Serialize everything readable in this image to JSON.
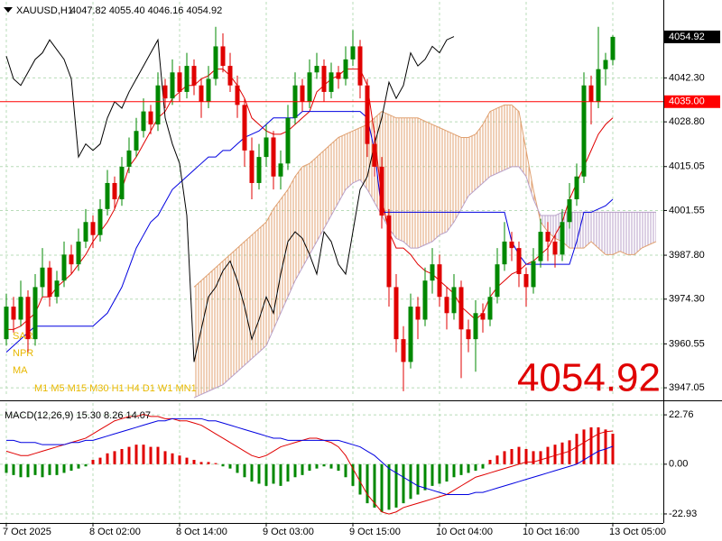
{
  "chart_data": {
    "type": "candlestick",
    "title": "XAUUSD,H1",
    "quote": "4047.82 4055.40 4046.16 4054.92",
    "legend_labels": [
      "SAR",
      "NPR",
      "MA"
    ],
    "timeframes": "M1 M5 M15 M30 H1 H4 D1 W1 MN1",
    "legend_color": "#e8b800",
    "grid": true,
    "up_color": "#008800",
    "down_color": "#e00000",
    "xlim": [
      -0.875,
      91
    ],
    "xticks": [
      {
        "value": 0,
        "label": "7 Oct 2025"
      },
      {
        "value": 12,
        "label": "8 Oct 02:00"
      },
      {
        "value": 24,
        "label": "8 Oct 14:00"
      },
      {
        "value": 36,
        "label": "9 Oct 03:00"
      },
      {
        "value": 48,
        "label": "9 Oct 15:00"
      },
      {
        "value": 60,
        "label": "10 Oct 04:00"
      },
      {
        "value": 72,
        "label": "10 Oct 16:00"
      },
      {
        "value": 84,
        "label": "13 Oct 05:00"
      }
    ],
    "ylim": [
      3944.3,
      4065.7
    ],
    "yticks": [
      {
        "value": 4042.3,
        "label": "4042.30"
      },
      {
        "value": 4028.8,
        "label": "4028.80"
      },
      4015.05,
      4001.55,
      {
        "value": 3987.8,
        "label": "3987.80"
      },
      {
        "value": 3974.3,
        "label": "3974.30"
      },
      3960.55,
      3947.05
    ],
    "hline": {
      "value": 4035,
      "label": "4035.00",
      "color": "#ff0000"
    },
    "ohlc": [
      [
        3962,
        3976,
        3960,
        3972
      ],
      [
        3972,
        3975,
        3964,
        3968
      ],
      [
        3968,
        3980,
        3966,
        3975
      ],
      [
        3975,
        3977,
        3958,
        3962
      ],
      [
        3962,
        3982,
        3960,
        3978
      ],
      [
        3978,
        3990,
        3975,
        3984
      ],
      [
        3984,
        3986,
        3972,
        3975
      ],
      [
        3975,
        3983,
        3973,
        3980
      ],
      [
        3980,
        3992,
        3978,
        3988
      ],
      [
        3988,
        3991,
        3982,
        3985
      ],
      [
        3985,
        3996,
        3983,
        3992
      ],
      [
        3992,
        4002,
        3990,
        3998
      ],
      [
        3998,
        4000,
        3990,
        3994
      ],
      [
        3994,
        4005,
        3992,
        4002
      ],
      [
        4002,
        4014,
        4000,
        4010
      ],
      [
        4010,
        4012,
        4002,
        4005
      ],
      [
        4005,
        4018,
        4003,
        4015
      ],
      [
        4015,
        4024,
        4013,
        4020
      ],
      [
        4020,
        4030,
        4018,
        4026
      ],
      [
        4026,
        4036,
        4024,
        4032
      ],
      [
        4032,
        4034,
        4025,
        4028
      ],
      [
        4028,
        4044,
        4026,
        4040
      ],
      [
        4040,
        4042,
        4033,
        4036
      ],
      [
        4036,
        4048,
        4034,
        4044
      ],
      [
        4044,
        4046,
        4035,
        4038
      ],
      [
        4038,
        4050,
        4036,
        4046
      ],
      [
        4046,
        4048,
        4037,
        4040
      ],
      [
        4040,
        4042,
        4030,
        4035
      ],
      [
        4035,
        4046,
        4033,
        4042
      ],
      [
        4042,
        4058,
        4040,
        4052
      ],
      [
        4052,
        4056,
        4044,
        4046
      ],
      [
        4046,
        4050,
        4038,
        4040
      ],
      [
        4040,
        4043,
        4030,
        4034
      ],
      [
        4034,
        4036,
        4015,
        4020
      ],
      [
        4020,
        4024,
        4005,
        4010
      ],
      [
        4010,
        4022,
        4008,
        4018
      ],
      [
        4018,
        4028,
        4015,
        4024
      ],
      [
        4024,
        4026,
        4008,
        4012
      ],
      [
        4012,
        4020,
        4008,
        4016
      ],
      [
        4016,
        4034,
        4014,
        4030
      ],
      [
        4030,
        4044,
        4028,
        4040
      ],
      [
        4040,
        4042,
        4032,
        4035
      ],
      [
        4035,
        4048,
        4033,
        4044
      ],
      [
        4044,
        4050,
        4042,
        4046
      ],
      [
        4046,
        4048,
        4035,
        4038
      ],
      [
        4038,
        4047,
        4036,
        4044
      ],
      [
        4044,
        4046,
        4039,
        4042
      ],
      [
        4042,
        4052,
        4040,
        4048
      ],
      [
        4048,
        4057,
        4046,
        4052
      ],
      [
        4052,
        4054,
        4036,
        4040
      ],
      [
        4040,
        4042,
        4018,
        4022
      ],
      [
        4022,
        4026,
        4012,
        4015
      ],
      [
        4015,
        4018,
        3996,
        4000
      ],
      [
        4000,
        4002,
        3972,
        3978
      ],
      [
        3978,
        3982,
        3958,
        3962
      ],
      [
        3962,
        3966,
        3946,
        3955
      ],
      [
        3955,
        3976,
        3953,
        3972
      ],
      [
        3972,
        3975,
        3962,
        3968
      ],
      [
        3968,
        3984,
        3966,
        3980
      ],
      [
        3980,
        3990,
        3976,
        3985
      ],
      [
        3985,
        3988,
        3972,
        3975
      ],
      [
        3975,
        3978,
        3965,
        3970
      ],
      [
        3970,
        3982,
        3968,
        3978
      ],
      [
        3978,
        3980,
        3950,
        3965
      ],
      [
        3965,
        3968,
        3958,
        3962
      ],
      [
        3962,
        3974,
        3952,
        3970
      ],
      [
        3970,
        3973,
        3964,
        3968
      ],
      [
        3968,
        3978,
        3966,
        3975
      ],
      [
        3975,
        3990,
        3973,
        3985
      ],
      [
        3985,
        3998,
        3983,
        3992
      ],
      [
        3992,
        3995,
        3986,
        3990
      ],
      [
        3990,
        3992,
        3978,
        3982
      ],
      [
        3982,
        3984,
        3972,
        3978
      ],
      [
        3978,
        3990,
        3976,
        3986
      ],
      [
        3986,
        3999,
        3984,
        3995
      ],
      [
        3995,
        3998,
        3986,
        3992
      ],
      [
        3992,
        3994,
        3984,
        3988
      ],
      [
        3988,
        4002,
        3986,
        3998
      ],
      [
        3998,
        4010,
        3996,
        4005
      ],
      [
        4005,
        4016,
        4003,
        4012
      ],
      [
        4012,
        4044,
        4010,
        4040
      ],
      [
        4040,
        4043,
        4028,
        4035
      ],
      [
        4035,
        4058,
        4033,
        4045
      ],
      [
        4045,
        4050,
        4040,
        4047.82
      ],
      [
        4047.82,
        4055.4,
        4046.16,
        4054.92
      ]
    ],
    "lines": [
      {
        "color": "#e00000",
        "values": [
          3965,
          3965,
          3966,
          3968,
          3970,
          3975,
          3975,
          3978,
          3980,
          3982,
          3985,
          3988,
          3992,
          3995,
          3998,
          4002,
          4008,
          4015,
          4018,
          4022,
          4026,
          4030,
          4032,
          4036,
          4038,
          4040,
          4040,
          4042,
          4043,
          4045,
          4045,
          4043,
          4040,
          4036,
          4030,
          4028,
          4026,
          4025,
          4025,
          4026,
          4028,
          4030,
          4032,
          4038,
          4040,
          4042,
          4043,
          4045,
          4045,
          4045,
          4040,
          4025,
          4005,
          3995,
          3990,
          3990,
          3988,
          3985,
          3983,
          3982,
          3980,
          3978,
          3976,
          3972,
          3970,
          3968,
          3970,
          3975,
          3978,
          3980,
          3982,
          3983,
          3985,
          3986,
          3988,
          3990,
          3994,
          3998,
          4005,
          4010,
          4015,
          4020,
          4025,
          4028,
          4030
        ]
      },
      {
        "color": "#0000e0",
        "values": [
          3958,
          3960,
          3962,
          3964,
          3966,
          3966,
          3966,
          3966,
          3966,
          3966,
          3966,
          3966,
          3966,
          3968,
          3970,
          3974,
          3978,
          3984,
          3990,
          3994,
          3998,
          4000,
          4004,
          4008,
          4010,
          4012,
          4014,
          4016,
          4018,
          4018,
          4020,
          4020,
          4022,
          4024,
          4025,
          4026,
          4028,
          4030,
          4030,
          4030,
          4030,
          4032,
          4032,
          4032,
          4032,
          4032,
          4032,
          4032,
          4032,
          4032,
          4030,
          4020,
          4001,
          4001,
          4001,
          4001,
          4001,
          4001,
          4001,
          4001,
          4001,
          4001,
          4001,
          4001,
          4001,
          4001,
          4001,
          4001,
          4001,
          4001,
          3992,
          3988,
          3985,
          3985,
          3985,
          3985,
          3985,
          3985,
          3985,
          3992,
          4001,
          4001,
          4002,
          4003,
          4005
        ]
      },
      {
        "color": "#000000",
        "values": [
          4049,
          4042,
          4040,
          4044,
          4048,
          4050,
          4054,
          4051,
          4048,
          4042,
          4018,
          4022,
          4020,
          4022,
          4030,
          4035,
          4033,
          4038,
          4042,
          4046,
          4050,
          4054,
          4030,
          4022,
          4016,
          4000,
          3955,
          3965,
          3975,
          3978,
          3983,
          3986,
          3980,
          3972,
          3962,
          3968,
          3975,
          3970,
          3982,
          3992,
          3995,
          3993,
          3988,
          3982,
          3995,
          3992,
          3985,
          3982,
          3995,
          4008,
          4012,
          4022,
          4030,
          4041,
          4036,
          4040,
          4050,
          4046,
          4048,
          4052,
          4050,
          4054,
          4055
        ]
      }
    ],
    "cloud": {
      "up_color": "#e0a070",
      "down_color": "#b8a0c8",
      "span_a": [
        null,
        null,
        null,
        null,
        null,
        null,
        null,
        null,
        null,
        null,
        null,
        null,
        null,
        null,
        null,
        null,
        null,
        null,
        null,
        null,
        null,
        null,
        null,
        null,
        null,
        null,
        3978,
        3980,
        3982,
        3984,
        3986,
        3988,
        3990,
        3992,
        3994,
        3996,
        3998,
        4002,
        4005,
        4008,
        4012,
        4015,
        4016,
        4018,
        4020,
        4022,
        4024,
        4025,
        4026,
        4027,
        4028,
        4030,
        4032,
        4031,
        4030,
        4030,
        4030,
        4030,
        4029,
        4028,
        4027,
        4026,
        4025,
        4024,
        4024,
        4025,
        4028,
        4032,
        4033,
        4034,
        4034,
        4032,
        4020,
        4008,
        3998,
        3995,
        3993,
        3992,
        3990,
        3990,
        3990,
        3992,
        3990,
        3988,
        3988,
        3989,
        3988,
        3988,
        3990,
        3991,
        3992
      ],
      "span_b": [
        null,
        null,
        null,
        null,
        null,
        null,
        null,
        null,
        null,
        null,
        null,
        null,
        null,
        null,
        null,
        null,
        null,
        null,
        null,
        null,
        null,
        null,
        null,
        null,
        null,
        null,
        3944,
        3945,
        3946,
        3947,
        3948,
        3950,
        3952,
        3954,
        3956,
        3958,
        3960,
        3965,
        3970,
        3975,
        3980,
        3984,
        3988,
        3992,
        3996,
        4000,
        4004,
        4008,
        4010,
        4011,
        4008,
        4004,
        4000,
        3996,
        3993,
        3992,
        3990,
        3990,
        3991,
        3992,
        3994,
        3995,
        3998,
        4002,
        4006,
        4008,
        4010,
        4012,
        4013,
        4014,
        4015,
        4015,
        4012,
        4005,
        4000,
        4000,
        4000,
        4001,
        4001,
        4001,
        4001,
        4001,
        4001,
        4001,
        4001,
        4001,
        4001,
        4001,
        4001,
        4001,
        4001
      ]
    },
    "macd": {
      "title": "MACD(12,26,9) 15.30 8.26 14.07",
      "ylim": [
        -27.1,
        28.2
      ],
      "yticks": [
        22.76,
        {
          "value": 0,
          "label": "0.00"
        },
        -22.93
      ],
      "pos_color": "#e00000",
      "neg_color": "#008800",
      "line_color": "#e00000",
      "signal_color": "#0000e0",
      "hist": [
        -4,
        -5,
        -6,
        -6,
        -5,
        -6,
        -5,
        -5,
        -4,
        -3,
        -2,
        -1,
        2,
        3,
        5,
        6,
        7,
        8,
        9,
        9,
        8,
        8,
        6,
        5,
        4,
        3,
        2,
        1,
        1,
        0.5,
        -1,
        -2,
        -4,
        -6,
        -8,
        -9,
        -10,
        -9,
        -10,
        -8,
        -6,
        -5,
        -3,
        -2,
        -1,
        -2,
        -3,
        -6,
        -10,
        -14,
        -18,
        -20,
        -22,
        -21,
        -20,
        -18,
        -16,
        -14,
        -12,
        -10,
        -9,
        -8,
        -6,
        -5,
        -4,
        -3,
        -2,
        2,
        4,
        6,
        7,
        8,
        7,
        6,
        6,
        8,
        9,
        10,
        11,
        14,
        16,
        17,
        17,
        16,
        14.07
      ],
      "line": [
        6,
        5,
        4,
        4,
        5,
        6,
        7,
        8,
        9,
        10,
        11,
        12,
        14,
        16,
        18,
        20,
        21,
        22,
        22,
        23,
        22,
        22,
        21,
        21,
        20,
        20,
        19,
        18,
        16,
        14,
        12,
        10,
        8,
        6,
        4,
        3,
        4,
        6,
        8,
        9,
        10,
        11,
        12,
        12,
        11,
        10,
        8,
        4,
        -2,
        -8,
        -14,
        -18,
        -22,
        -23,
        -22,
        -20,
        -19,
        -18,
        -17,
        -16,
        -15,
        -14,
        -12,
        -10,
        -8,
        -6,
        -5,
        -4,
        -3,
        -2,
        -1,
        0,
        1,
        1,
        2,
        3,
        4,
        5,
        6,
        8,
        10,
        12,
        14,
        15,
        15.3
      ],
      "signal": [
        11,
        11,
        10,
        10,
        10,
        9,
        9,
        9,
        9,
        10,
        10,
        11,
        11,
        12,
        13,
        14,
        15,
        16,
        17,
        18,
        19,
        20,
        20,
        21,
        21,
        21,
        21,
        21,
        20,
        20,
        19,
        18,
        17,
        16,
        15,
        14,
        13,
        12,
        12,
        11,
        11,
        11,
        11,
        11,
        11,
        11,
        11,
        10,
        9,
        8,
        6,
        4,
        1,
        -2,
        -4,
        -6,
        -8,
        -10,
        -11,
        -12,
        -13,
        -14,
        -14,
        -14,
        -14,
        -13,
        -13,
        -12,
        -11,
        -10,
        -9,
        -8,
        -7,
        -6,
        -5,
        -4,
        -3,
        -2,
        -1,
        0,
        2,
        4,
        6,
        7,
        8.26
      ]
    }
  }
}
